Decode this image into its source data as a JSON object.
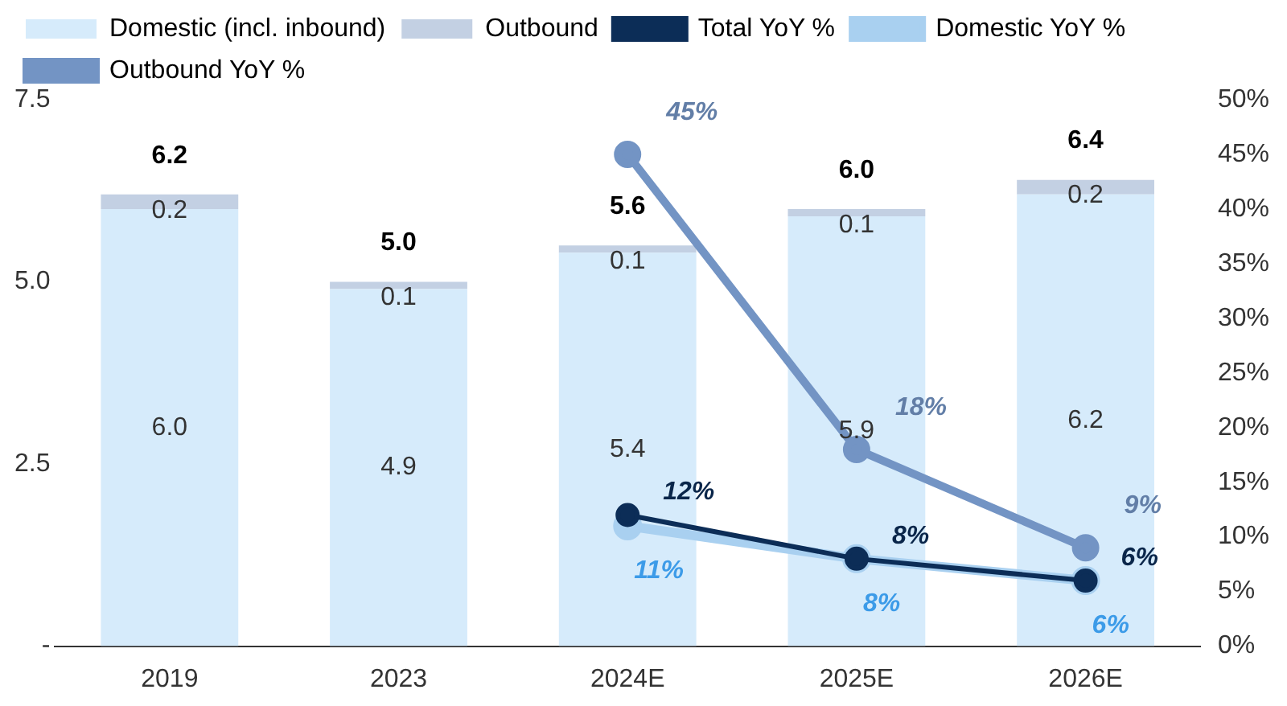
{
  "chart_data": {
    "type": "bar",
    "stacked": true,
    "categories": [
      "2019",
      "2023",
      "2024E",
      "2025E",
      "2026E"
    ],
    "series": [
      {
        "name": "Domestic (incl. inbound)",
        "color": "#d6ebfb",
        "values": [
          6.0,
          4.9,
          5.4,
          5.9,
          6.2
        ],
        "value_labels": [
          "6.0",
          "4.9",
          "5.4",
          "5.9",
          "6.2"
        ]
      },
      {
        "name": "Outbound",
        "color": "#c3d0e3",
        "values": [
          0.2,
          0.1,
          0.1,
          0.1,
          0.2
        ],
        "value_labels": [
          "0.2",
          "0.1",
          "0.1",
          "0.1",
          "0.2"
        ]
      },
      {
        "name": "Total YoY %",
        "type": "line",
        "axis": "y2",
        "color": "#0c2d57",
        "values": [
          null,
          null,
          12,
          8,
          6
        ],
        "value_labels": [
          null,
          null,
          "12%",
          "8%",
          "6%"
        ]
      },
      {
        "name": "Domestic YoY %",
        "type": "line",
        "axis": "y2",
        "color": "#a9d0f0",
        "values": [
          null,
          null,
          11,
          8,
          6
        ],
        "value_labels": [
          null,
          null,
          "11%",
          "8%",
          "6%"
        ]
      },
      {
        "name": "Outbound YoY %",
        "type": "line",
        "axis": "y2",
        "color": "#7394c4",
        "values": [
          null,
          null,
          45,
          18,
          9
        ],
        "value_labels": [
          null,
          null,
          "45%",
          "18%",
          "9%"
        ]
      }
    ],
    "totals": [
      "6.2",
      "5.0",
      "5.6",
      "6.0",
      "6.4"
    ],
    "ylim": [
      0,
      7.5
    ],
    "yticks": [
      {
        "value": 0,
        "label": "-"
      },
      {
        "value": 2.5,
        "label": "2.5"
      },
      {
        "value": 5,
        "label": "5.0"
      },
      {
        "value": 7.5,
        "label": "7.5"
      }
    ],
    "y2lim": [
      0,
      50
    ],
    "y2ticks": [
      {
        "value": 0,
        "label": "0%"
      },
      {
        "value": 5,
        "label": "5%"
      },
      {
        "value": 10,
        "label": "10%"
      },
      {
        "value": 15,
        "label": "15%"
      },
      {
        "value": 20,
        "label": "20%"
      },
      {
        "value": 25,
        "label": "25%"
      },
      {
        "value": 30,
        "label": "30%"
      },
      {
        "value": 35,
        "label": "35%"
      },
      {
        "value": 40,
        "label": "40%"
      },
      {
        "value": 45,
        "label": "45%"
      },
      {
        "value": 50,
        "label": "50%"
      }
    ],
    "grid": false,
    "legend": "top",
    "marker": "circle"
  }
}
